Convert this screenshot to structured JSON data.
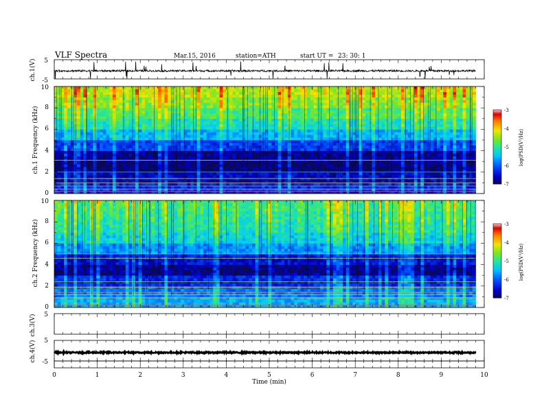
{
  "header": {
    "title": "VLF Spectra",
    "date": "Mar.15, 2016",
    "station": "station=ATH",
    "start": "start UT =",
    "start_time": "23: 30: 1"
  },
  "chart_data": [
    {
      "type": "line",
      "panel": "ch1-waveform",
      "ylabel": "ch.1(V)",
      "ylim": [
        -5,
        5
      ],
      "y_ticks": [
        "5",
        "-5"
      ],
      "xlim": [
        0,
        10
      ],
      "baseline": -0.8,
      "note": "noisy waveform with spikes, about -0.8 V baseline"
    },
    {
      "type": "heatmap",
      "panel": "ch1-spectrogram",
      "ylabel": "ch.1 Frequency (kHz)",
      "ylim": [
        0,
        10
      ],
      "y_ticks": [
        "0",
        "2",
        "4",
        "6",
        "8",
        "10"
      ],
      "xlim": [
        0,
        9.8
      ],
      "colorbar": {
        "label": "log(PSD(V²/Hz)",
        "range": [
          -7,
          -3
        ],
        "ticks": [
          "-3",
          "-4",
          "-5",
          "-6",
          "-7"
        ]
      },
      "log_psd_by_frequency": [
        {
          "kHz": 0.5,
          "value": -6.3
        },
        {
          "kHz": 1.5,
          "value": -6.6
        },
        {
          "kHz": 2.5,
          "value": -6.9
        },
        {
          "kHz": 3.5,
          "value": -6.8
        },
        {
          "kHz": 4.5,
          "value": -6.2
        },
        {
          "kHz": 5.5,
          "value": -5.6
        },
        {
          "kHz": 6.5,
          "value": -5.2
        },
        {
          "kHz": 7.5,
          "value": -4.9
        },
        {
          "kHz": 8.5,
          "value": -4.6
        },
        {
          "kHz": 9.5,
          "value": -4.4
        }
      ]
    },
    {
      "type": "heatmap",
      "panel": "ch2-spectrogram",
      "ylabel": "ch.2 Frequency (kHz)",
      "ylim": [
        0,
        10
      ],
      "y_ticks": [
        "0",
        "2",
        "4",
        "6",
        "8",
        "10"
      ],
      "xlim": [
        0,
        9.8
      ],
      "colorbar": {
        "label": "log(PSD(V²/Hz)",
        "range": [
          -7,
          -3
        ],
        "ticks": [
          "-3",
          "-4",
          "-5",
          "-6",
          "-7"
        ]
      },
      "log_psd_by_frequency": [
        {
          "kHz": 0.5,
          "value": -5.6
        },
        {
          "kHz": 1.5,
          "value": -5.9
        },
        {
          "kHz": 2.5,
          "value": -6.3
        },
        {
          "kHz": 3.5,
          "value": -6.8
        },
        {
          "kHz": 4.5,
          "value": -6.5
        },
        {
          "kHz": 5.5,
          "value": -5.8
        },
        {
          "kHz": 6.5,
          "value": -5.4
        },
        {
          "kHz": 7.5,
          "value": -5.2
        },
        {
          "kHz": 8.5,
          "value": -5.1
        },
        {
          "kHz": 9.5,
          "value": -5.0
        }
      ]
    },
    {
      "type": "line",
      "panel": "ch3-waveform",
      "ylabel": "ch.3(V)",
      "ylim": [
        -5,
        5
      ],
      "y_ticks": [
        "5"
      ],
      "xlim": [
        0,
        10
      ],
      "note": "no signal"
    },
    {
      "type": "line",
      "panel": "ch4-waveform",
      "ylabel": "ch.4(V)",
      "ylim": [
        -5,
        5
      ],
      "y_ticks": [
        "5",
        "-5"
      ],
      "xlim": [
        0,
        10
      ],
      "baseline": -0.9,
      "xlabel": "Time (min)",
      "x_ticks": [
        "0",
        "1",
        "2",
        "3",
        "4",
        "5",
        "6",
        "7",
        "8",
        "9",
        "10"
      ]
    }
  ]
}
